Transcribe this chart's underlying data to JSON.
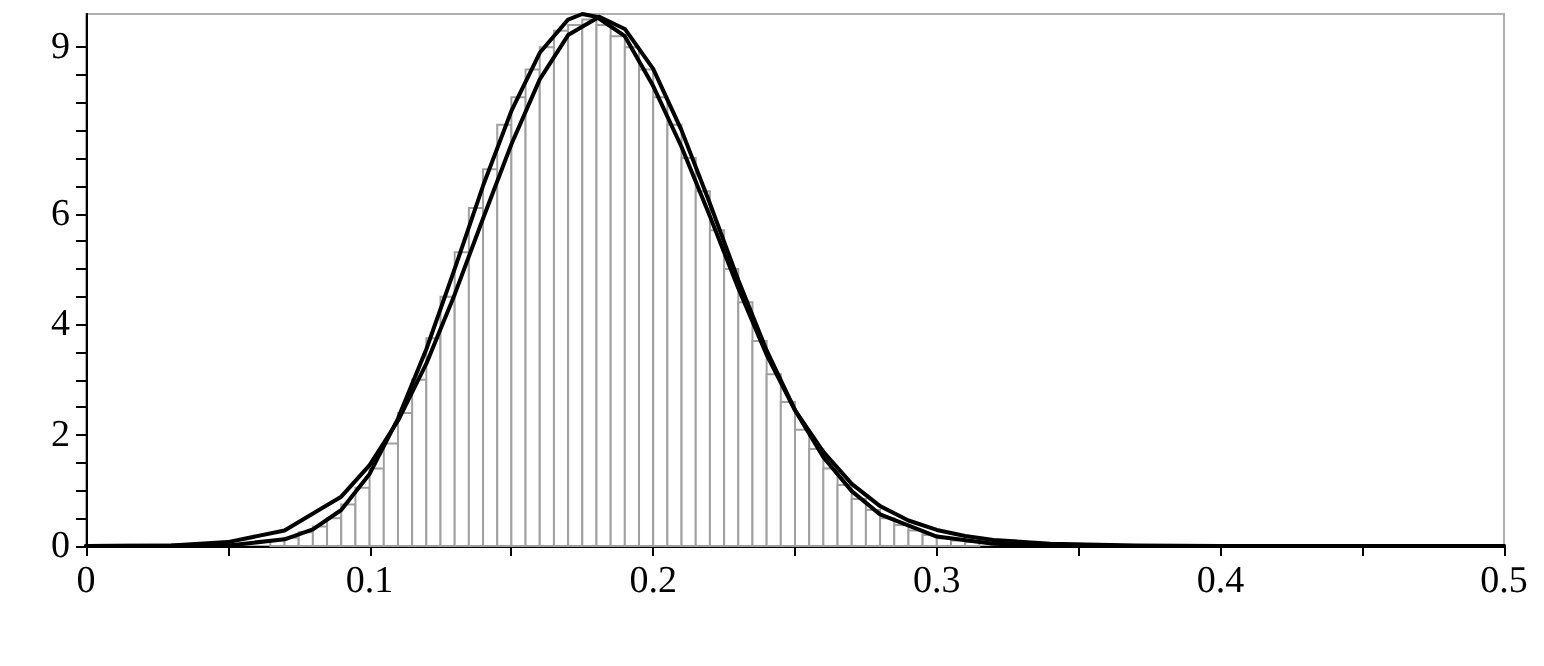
{
  "chart_data": {
    "type": "histogram",
    "color": "#ffffff",
    "bins": [
      0.065,
      0.07,
      0.075,
      0.08,
      0.085,
      0.09,
      0.095,
      0.1,
      0.105,
      0.11,
      0.115,
      0.12,
      0.125,
      0.13,
      0.135,
      0.14,
      0.145,
      0.15,
      0.155,
      0.16,
      0.165,
      0.17,
      0.175,
      0.18,
      0.185,
      0.19,
      0.195,
      0.2,
      0.205,
      0.21,
      0.215,
      0.22,
      0.225,
      0.23,
      0.235,
      0.24,
      0.245,
      0.25,
      0.255,
      0.26,
      0.265,
      0.27,
      0.275,
      0.28,
      0.285,
      0.29,
      0.295,
      0.3,
      0.305,
      0.31,
      0.315,
      0.32,
      0.325,
      0.33,
      0.335
    ],
    "values": [
      0.1,
      0.15,
      0.25,
      0.35,
      0.5,
      0.75,
      1.05,
      1.4,
      1.85,
      2.4,
      3.0,
      3.75,
      4.5,
      5.3,
      6.1,
      6.8,
      7.6,
      8.1,
      8.6,
      9.0,
      9.3,
      9.4,
      9.5,
      9.4,
      9.2,
      9.0,
      8.6,
      8.1,
      7.6,
      7.0,
      6.4,
      5.7,
      5.0,
      4.4,
      3.7,
      3.1,
      2.6,
      2.1,
      1.75,
      1.4,
      1.1,
      0.85,
      0.65,
      0.5,
      0.38,
      0.28,
      0.2,
      0.14,
      0.1,
      0.07,
      null,
      null,
      null,
      null
    ],
    "series": [
      {
        "type": "line",
        "color": "#000000",
        "x": [
          0,
          0.05,
          0.07,
          0.08,
          0.09,
          0.1,
          0.11,
          0.12,
          0.13,
          0.14,
          0.15,
          0.16,
          0.17,
          0.175,
          0.18,
          0.19,
          0.2,
          0.21,
          0.22,
          0.23,
          0.24,
          0.25,
          0.26,
          0.27,
          0.28,
          0.29,
          0.3,
          0.31,
          0.32,
          0.34,
          0.37,
          0.4,
          0.5
        ],
        "values": [
          0,
          0.01,
          0.12,
          0.3,
          0.65,
          1.3,
          2.3,
          3.55,
          5.0,
          6.5,
          7.85,
          8.9,
          9.5,
          9.6,
          9.55,
          9.2,
          8.3,
          7.2,
          5.95,
          4.65,
          3.45,
          2.45,
          1.7,
          1.12,
          0.72,
          0.46,
          0.29,
          0.18,
          0.11,
          0.04,
          0.01,
          0,
          0
        ]
      },
      {
        "type": "line",
        "color": "#000000",
        "x": [
          0,
          0.03,
          0.05,
          0.07,
          0.09,
          0.1,
          0.11,
          0.12,
          0.13,
          0.14,
          0.15,
          0.16,
          0.17,
          0.181,
          0.19,
          0.2,
          0.21,
          0.22,
          0.23,
          0.24,
          0.25,
          0.26,
          0.27,
          0.28,
          0.3,
          0.32,
          0.35,
          0.5
        ],
        "values": [
          0,
          0.01,
          0.07,
          0.28,
          0.89,
          1.46,
          2.26,
          3.29,
          4.54,
          5.91,
          7.25,
          8.42,
          9.22,
          9.55,
          9.33,
          8.61,
          7.5,
          6.18,
          4.8,
          3.53,
          2.45,
          1.6,
          0.99,
          0.57,
          0.17,
          0.04,
          0,
          0
        ]
      }
    ],
    "xlim": [
      0,
      0.5
    ],
    "xticks": [
      0,
      {
        "value": 0.05,
        "label": null
      },
      0.1,
      {
        "value": 0.15,
        "label": null
      },
      0.2,
      {
        "value": 0.25,
        "label": null
      },
      0.3,
      {
        "value": 0.35,
        "label": null
      },
      0.4,
      {
        "value": 0.45,
        "label": null
      },
      0.5
    ],
    "ylim": [
      0,
      9.6
    ],
    "yticks": [
      0,
      {
        "value": 0.5,
        "label": null
      },
      {
        "value": 1,
        "label": null
      },
      {
        "value": 1.5,
        "label": null
      },
      2,
      {
        "value": 2.5,
        "label": null
      },
      {
        "value": 3,
        "label": null
      },
      {
        "value": 3.5,
        "label": null
      },
      4,
      {
        "value": 4.5,
        "label": null
      },
      {
        "value": 5,
        "label": null
      },
      {
        "value": 5.5,
        "label": null
      },
      6,
      {
        "value": 6.5,
        "label": null
      },
      {
        "value": 7,
        "label": null
      },
      {
        "value": 7.5,
        "label": null
      },
      {
        "value": 8,
        "label": null
      },
      {
        "value": 8.5,
        "label": null
      },
      9
    ],
    "grid": false,
    "marker": "none",
    "line_style": "solid"
  }
}
